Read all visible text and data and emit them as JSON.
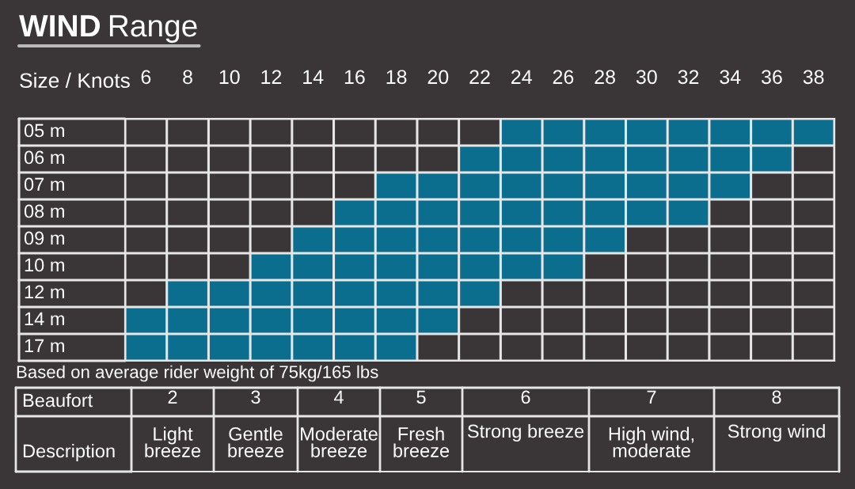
{
  "chart_data": [
    {
      "type": "bar",
      "orientation": "horizontal",
      "title": "WIND Range",
      "xlabel": "Size / Knots",
      "categories": [
        "05 m",
        "06 m",
        "07 m",
        "08 m",
        "09 m",
        "10 m",
        "12 m",
        "14 m",
        "17 m"
      ],
      "base": [
        23,
        21,
        17,
        15,
        13,
        11,
        7,
        5,
        5
      ],
      "values": [
        16,
        16,
        18,
        18,
        16,
        16,
        16,
        16,
        14
      ],
      "color": "#0b6e8f",
      "xlim": [
        5,
        39
      ],
      "xticks": [
        6,
        8,
        10,
        12,
        14,
        16,
        18,
        20,
        22,
        24,
        26,
        28,
        30,
        32,
        34,
        36,
        38
      ],
      "grid": true,
      "annotations": [
        "Based on average rider weight of 75kg/165 lbs"
      ]
    },
    {
      "type": "heatmap",
      "xlabel": "Beaufort",
      "categories": [
        "2",
        "3",
        "4",
        "5",
        "6",
        "7",
        "8"
      ],
      "y_categories": [
        "Description"
      ],
      "cells": [
        [
          null,
          null,
          null,
          null,
          null,
          null,
          null
        ]
      ],
      "cell_labels": [
        [
          "Light breeze",
          "Gentle breeze",
          "Moderate breeze",
          "Fresh breeze",
          "Strong breeze",
          "High wind, moderate",
          "Strong wind"
        ]
      ]
    }
  ]
}
